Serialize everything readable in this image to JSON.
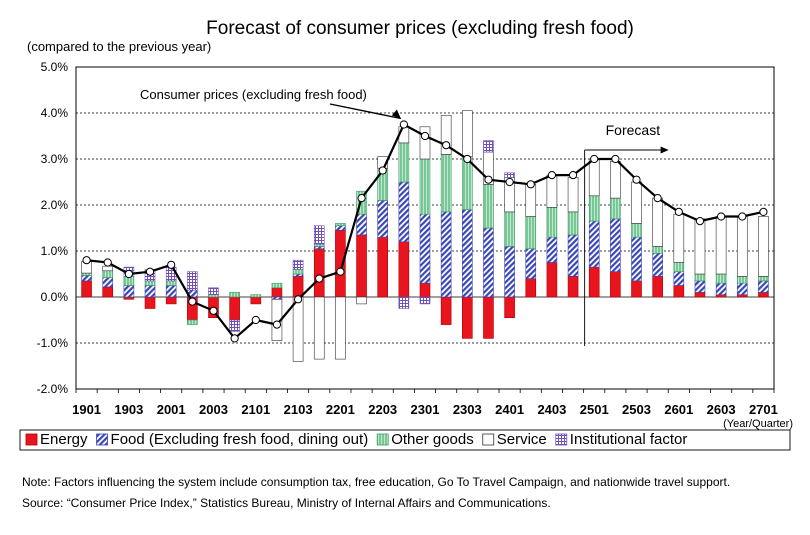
{
  "chart_data": {
    "type": "bar",
    "title": "Forecast of consumer prices (excluding fresh food)",
    "ylabel": "(compared to the previous year)",
    "xlabel": "(Year/Quarter)",
    "ylim": [
      -2.0,
      5.0
    ],
    "y_ticks": [
      "5.0%",
      "4.0%",
      "3.0%",
      "2.0%",
      "1.0%",
      "0.0%",
      "-1.0%",
      "-2.0%"
    ],
    "y_tick_values": [
      5,
      4,
      3,
      2,
      1,
      0,
      -1,
      -2
    ],
    "x_tick_labels": [
      "1901",
      "1903",
      "2001",
      "2003",
      "2101",
      "2103",
      "2201",
      "2203",
      "2301",
      "2303",
      "2401",
      "2403",
      "2501",
      "2503",
      "2601",
      "2603",
      "2701"
    ],
    "grid": true,
    "legend_position": "bottom",
    "categories": [
      "1901",
      "1902",
      "1903",
      "1904",
      "2001",
      "2002",
      "2003",
      "2004",
      "2101",
      "2102",
      "2103",
      "2104",
      "2201",
      "2202",
      "2203",
      "2204",
      "2301",
      "2302",
      "2303",
      "2304",
      "2401",
      "2402",
      "2403",
      "2404",
      "2501",
      "2502",
      "2503",
      "2504",
      "2601",
      "2602",
      "2603",
      "2604",
      "2701"
    ],
    "series": [
      {
        "name": "Energy",
        "color": "#e8141e",
        "values": [
          0.35,
          0.22,
          -0.05,
          -0.25,
          -0.15,
          -0.5,
          -0.45,
          -0.5,
          -0.15,
          0.2,
          0.45,
          1.05,
          1.45,
          1.35,
          1.3,
          1.2,
          0.3,
          -0.6,
          -0.9,
          -0.9,
          -0.45,
          0.4,
          0.75,
          0.45,
          0.65,
          0.55,
          0.35,
          0.45,
          0.25,
          0.1,
          0.05,
          0.05,
          0.1
        ]
      },
      {
        "name": "Food (Excluding fresh food, dining out)",
        "color": "#3a47b4",
        "values": [
          0.12,
          0.2,
          0.25,
          0.25,
          0.25,
          0.15,
          0.0,
          0.0,
          0.0,
          -0.05,
          0.05,
          0.05,
          0.1,
          0.45,
          0.8,
          1.3,
          1.5,
          1.85,
          1.9,
          1.5,
          1.1,
          0.65,
          0.55,
          0.9,
          1.0,
          1.15,
          0.95,
          0.5,
          0.3,
          0.25,
          0.25,
          0.25,
          0.25
        ]
      },
      {
        "name": "Other goods",
        "color": "#78c896",
        "values": [
          0.05,
          0.15,
          0.2,
          0.1,
          0.1,
          -0.1,
          0.05,
          0.1,
          0.05,
          0.1,
          0.1,
          0.05,
          0.05,
          0.5,
          0.7,
          0.85,
          1.2,
          1.25,
          1.15,
          0.95,
          0.75,
          0.7,
          0.65,
          0.5,
          0.55,
          0.45,
          0.3,
          0.15,
          0.2,
          0.15,
          0.2,
          0.15,
          0.1
        ]
      },
      {
        "name": "Service",
        "color": "#ffffff",
        "values": [
          0.25,
          0.1,
          0.0,
          0.0,
          0.0,
          0.0,
          0.0,
          0.0,
          0.0,
          -0.9,
          -1.4,
          -1.35,
          -1.35,
          -0.15,
          0.25,
          0.35,
          0.7,
          0.85,
          1.0,
          0.7,
          0.75,
          0.7,
          0.7,
          0.75,
          0.8,
          0.8,
          0.9,
          1.05,
          1.05,
          1.2,
          1.25,
          1.3,
          1.3
        ]
      },
      {
        "name": "Institutional factor",
        "color": "#7050b4",
        "values": [
          0.0,
          0.0,
          0.2,
          0.25,
          0.3,
          0.4,
          0.15,
          -0.25,
          0.0,
          0.0,
          0.2,
          0.4,
          0.0,
          0.0,
          0.0,
          -0.25,
          -0.15,
          0.0,
          0.0,
          0.25,
          0.1,
          0.0,
          0.0,
          0.0,
          0.0,
          0.0,
          0.0,
          0.0,
          0.0,
          0.0,
          0.0,
          0.0,
          0.0
        ]
      }
    ],
    "line": {
      "name": "Consumer prices (excluding fresh food)",
      "color": "#000000",
      "values": [
        0.8,
        0.75,
        0.5,
        0.55,
        0.7,
        -0.1,
        -0.3,
        -0.9,
        -0.5,
        -0.6,
        -0.05,
        0.4,
        0.55,
        2.15,
        2.75,
        3.75,
        3.5,
        3.3,
        3.0,
        2.55,
        2.5,
        2.45,
        2.65,
        2.65,
        3.0,
        3.0,
        2.55,
        2.15,
        1.85,
        1.65,
        1.75,
        1.75,
        1.85
      ]
    },
    "annotations": {
      "line_label": "Consumer prices (excluding fresh food)",
      "forecast_label": "Forecast",
      "forecast_start_category": "2501"
    }
  },
  "notes": {
    "note": "Note: Factors influencing the system include consumption tax, free education, Go To Travel Campaign, and nationwide travel support.",
    "source": "Source: “Consumer Price Index,” Statistics Bureau, Ministry of Internal Affairs and Communications."
  }
}
